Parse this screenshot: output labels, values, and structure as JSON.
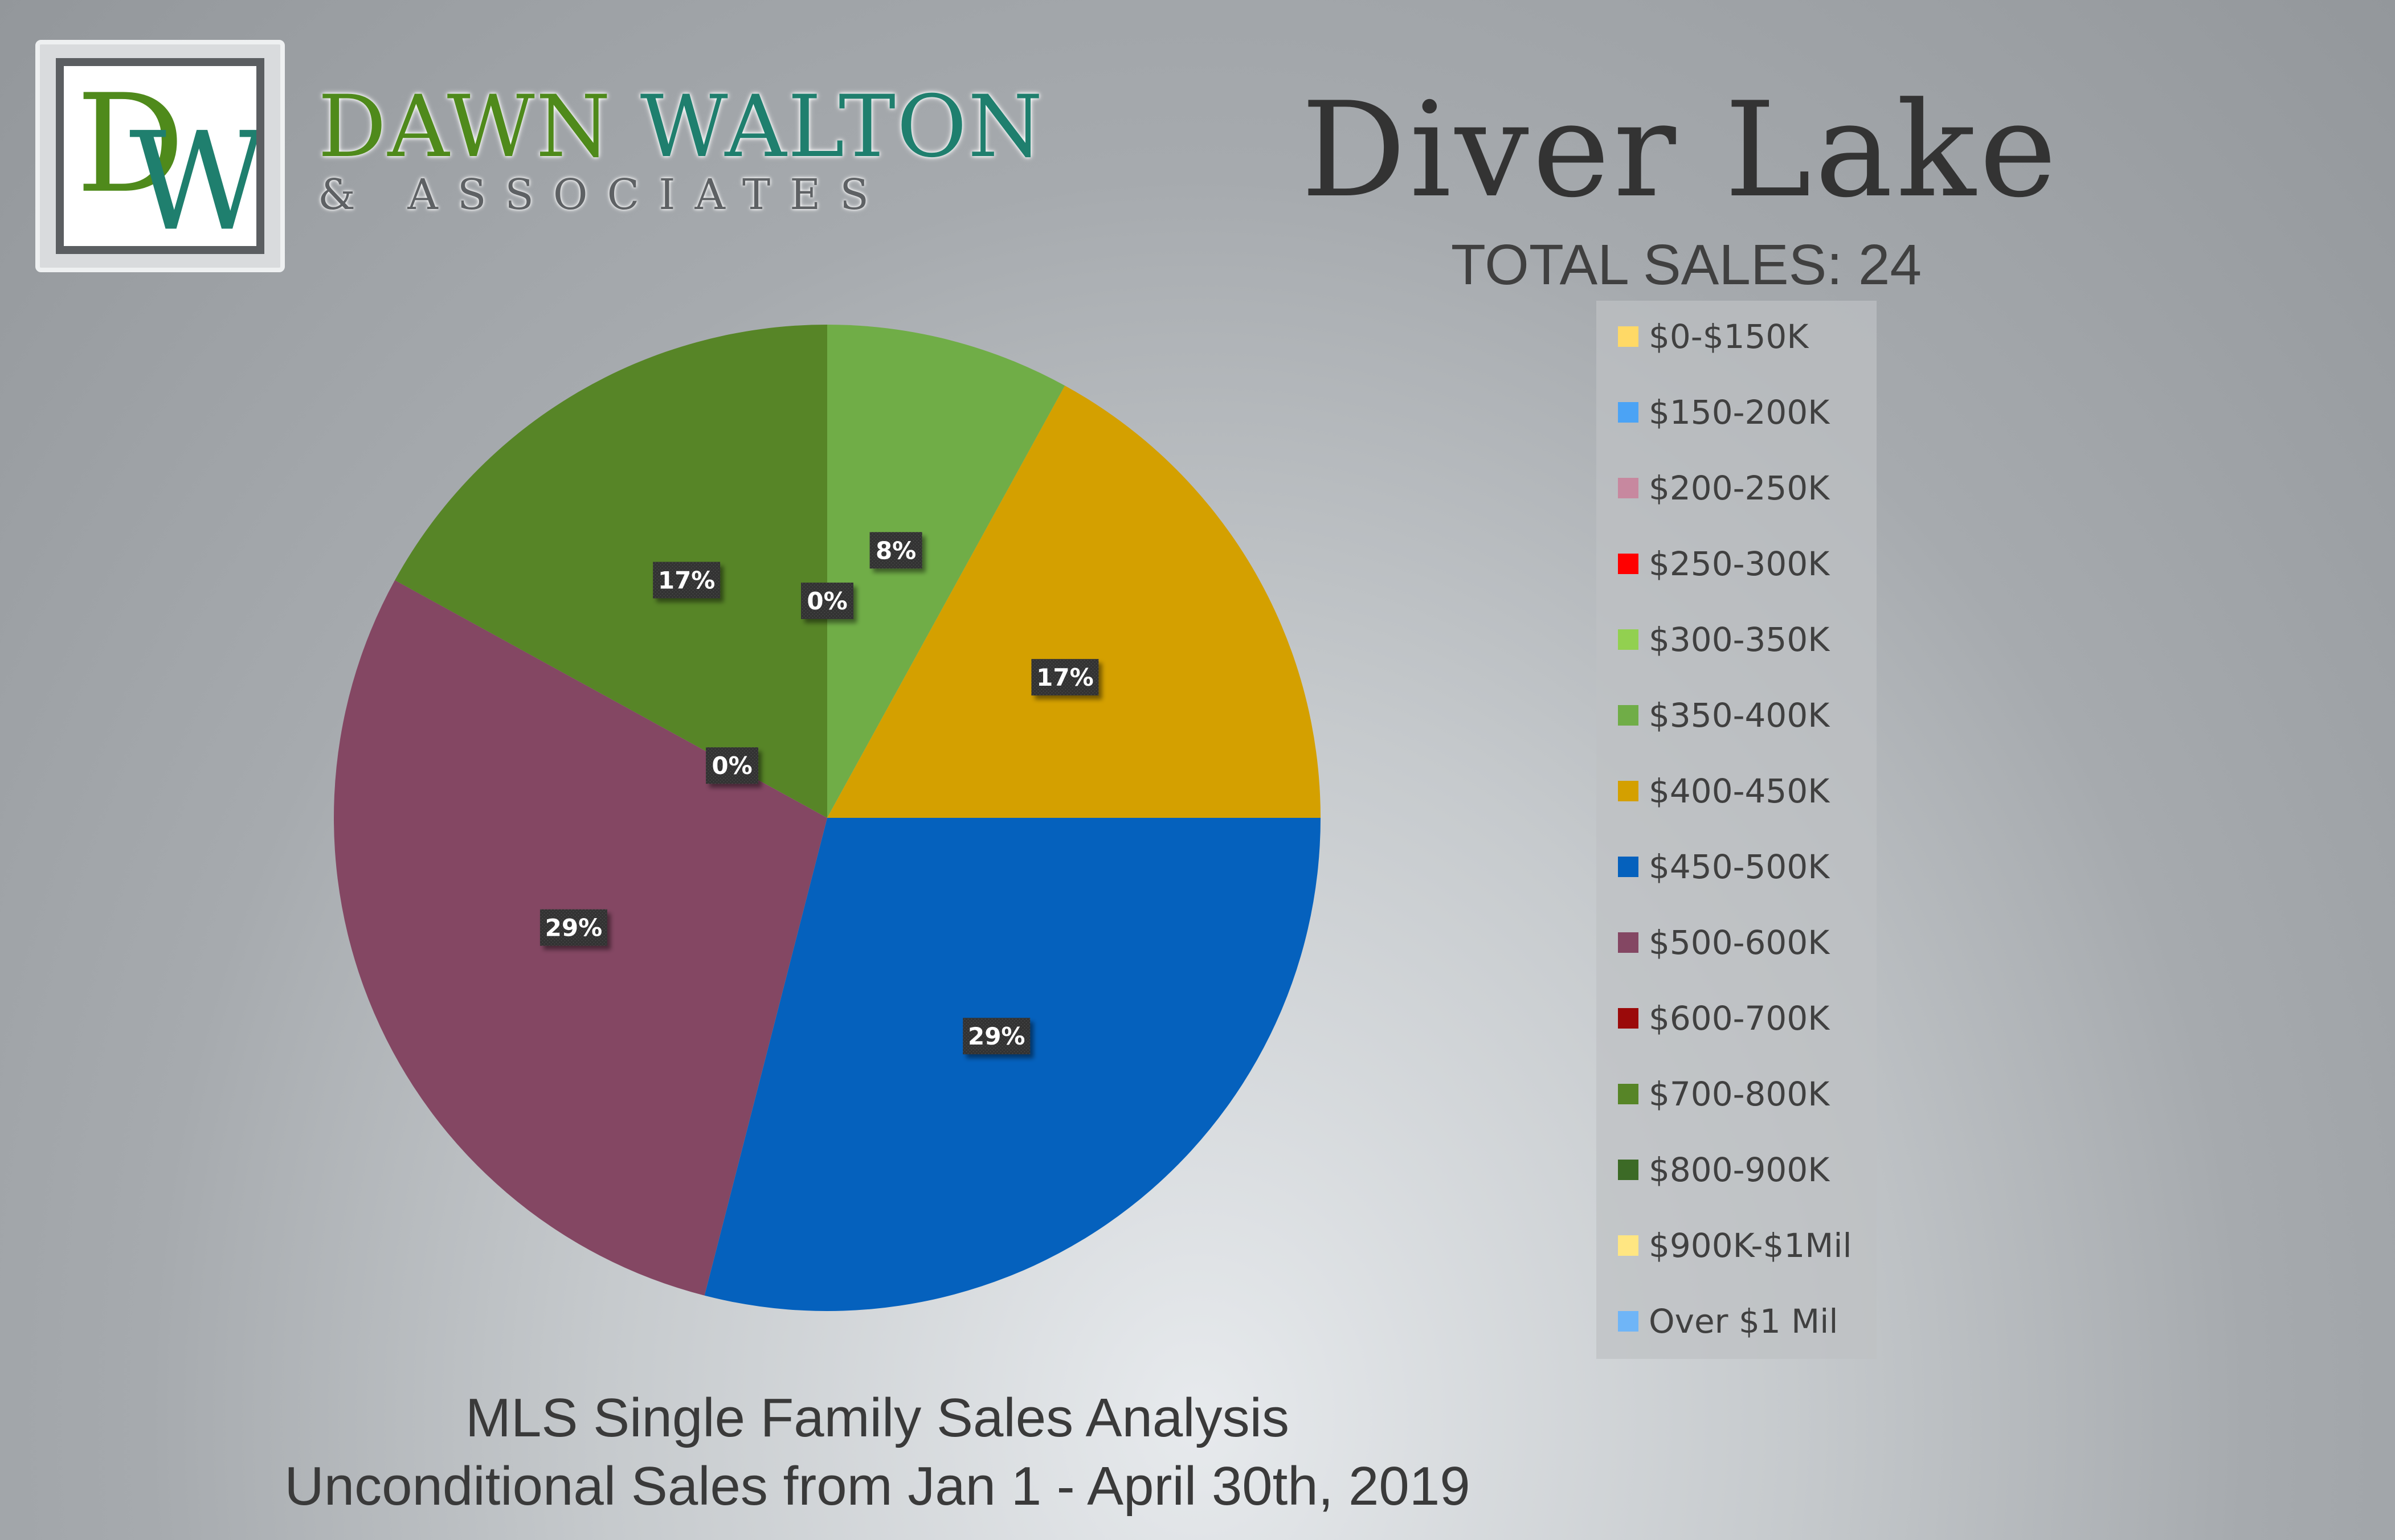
{
  "brand": {
    "logo_letters": "DW",
    "name_first": "DAWN",
    "name_last": "WALTON",
    "subtitle": "& ASSOCIATES",
    "colors": {
      "green": "#4f8a1b",
      "teal": "#1f7f6e",
      "gray": "#5b5e61"
    }
  },
  "header": {
    "title": "Diver Lake",
    "total_sales": "TOTAL SALES: 24"
  },
  "footer": {
    "line1": "MLS Single Family Sales Analysis",
    "line2": "Unconditional Sales from Jan 1 - April 30th, 2019"
  },
  "chart_data": {
    "type": "pie",
    "title": "Diver Lake",
    "legend_position": "right",
    "slices": [
      {
        "label": "$0-$150K",
        "value": 0,
        "color": "#ffd966"
      },
      {
        "label": "$150-200K",
        "value": 0,
        "color": "#4ba3f5"
      },
      {
        "label": "$200-250K",
        "value": 0,
        "color": "#c7889f"
      },
      {
        "label": "$250-300K",
        "value": 0,
        "color": "#ff0000"
      },
      {
        "label": "$300-350K",
        "value": 0,
        "color": "#92d050"
      },
      {
        "label": "$350-400K",
        "value": 8,
        "color": "#70ad47"
      },
      {
        "label": "$400-450K",
        "value": 17,
        "color": "#d4a000"
      },
      {
        "label": "$450-500K",
        "value": 29,
        "color": "#0561bd"
      },
      {
        "label": "$500-600K",
        "value": 29,
        "color": "#844763"
      },
      {
        "label": "$600-700K",
        "value": 0,
        "color": "#9b0a0a"
      },
      {
        "label": "$700-800K",
        "value": 17,
        "color": "#578527"
      },
      {
        "label": "$800-900K",
        "value": 0,
        "color": "#3c6a26"
      },
      {
        "label": "$900K-$1Mil",
        "value": 0,
        "color": "#ffe682"
      },
      {
        "label": "Over $1 Mil",
        "value": 0,
        "color": "#6fb5f7"
      }
    ],
    "data_labels": [
      {
        "text": "0%",
        "slice": "$300-350K"
      },
      {
        "text": "8%",
        "slice": "$350-400K"
      },
      {
        "text": "17%",
        "slice": "$400-450K"
      },
      {
        "text": "29%",
        "slice": "$450-500K"
      },
      {
        "text": "29%",
        "slice": "$500-600K"
      },
      {
        "text": "0%",
        "slice": "$600-700K"
      },
      {
        "text": "17%",
        "slice": "$700-800K"
      }
    ]
  }
}
